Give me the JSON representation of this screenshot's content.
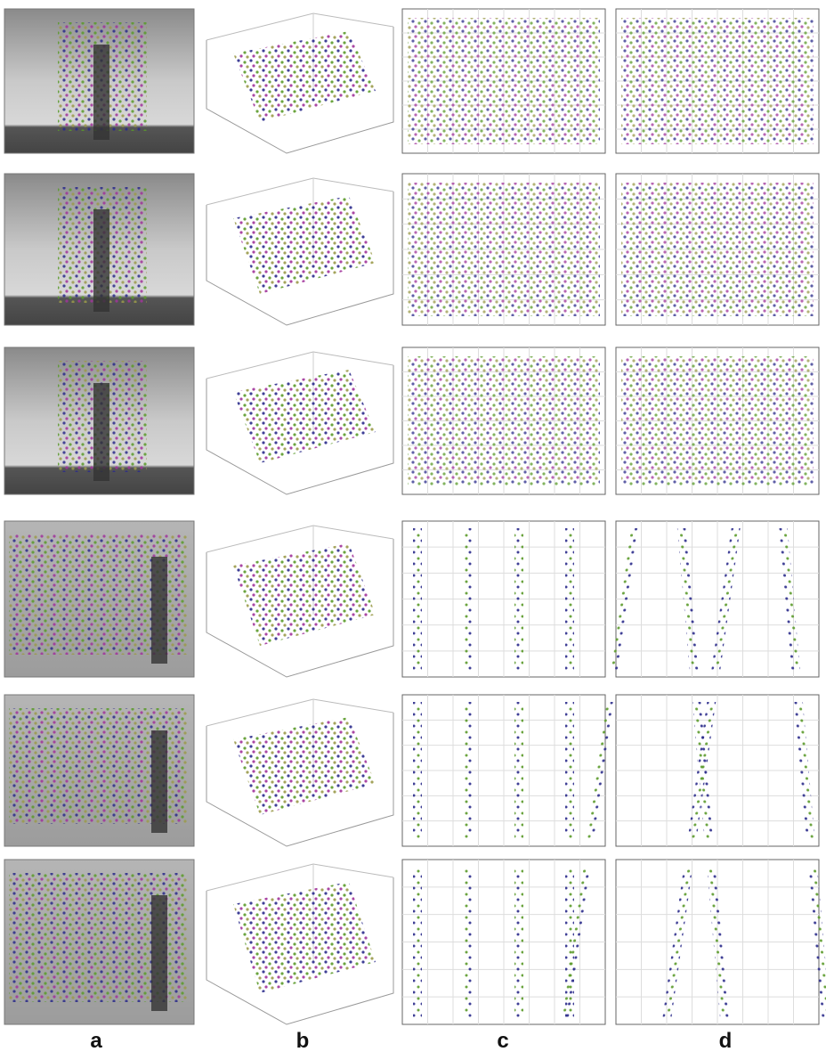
{
  "columns": [
    {
      "label": "a"
    },
    {
      "label": "b"
    },
    {
      "label": "c"
    },
    {
      "label": "d"
    }
  ]
}
